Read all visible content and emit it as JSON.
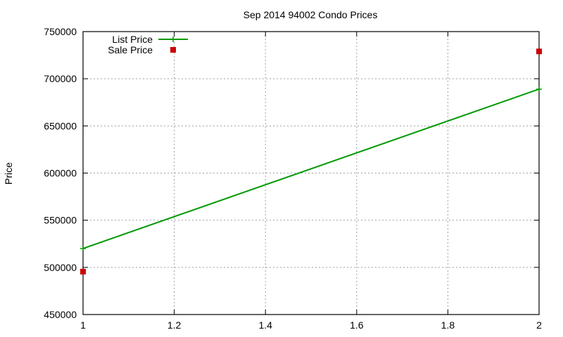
{
  "chart_data": {
    "type": "line",
    "title": "Sep 2014 94002 Condo Prices",
    "xlabel": "",
    "ylabel": "Price",
    "xlim": [
      1,
      2
    ],
    "ylim": [
      450000,
      750000
    ],
    "x_ticks": [
      "1",
      "1.2",
      "1.4",
      "1.6",
      "1.8",
      "2"
    ],
    "y_ticks": [
      "450000",
      "500000",
      "550000",
      "600000",
      "650000",
      "700000",
      "750000"
    ],
    "grid": true,
    "legend_position": "top-left",
    "series": [
      {
        "name": "List Price",
        "style": "linespoints",
        "color": "#009900",
        "marker": "plus",
        "x": [
          1,
          2
        ],
        "values": [
          520000,
          689000
        ]
      },
      {
        "name": "Sale Price",
        "style": "points",
        "color": "#cc0000",
        "marker": "square",
        "x": [
          1,
          2
        ],
        "values": [
          495500,
          729000
        ]
      }
    ]
  }
}
